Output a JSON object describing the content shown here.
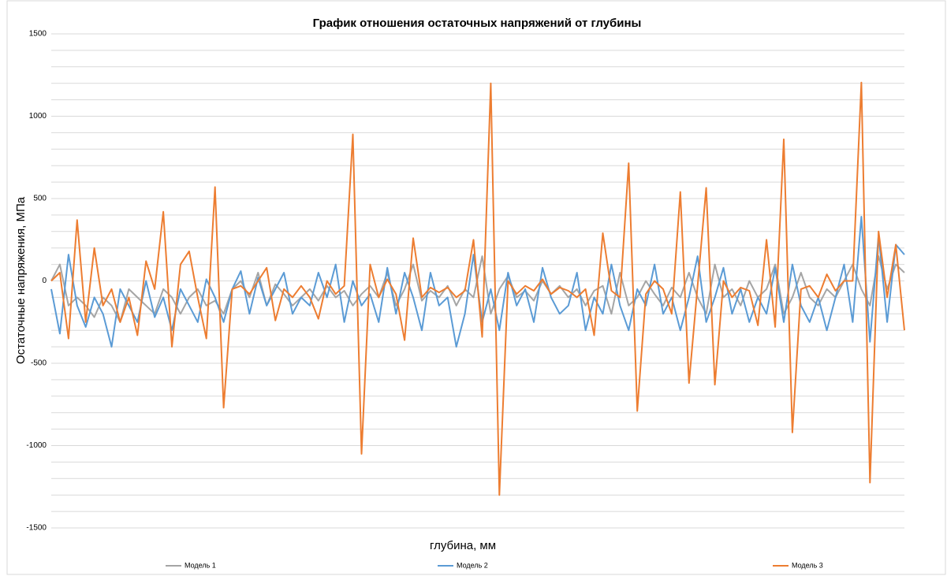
{
  "chart_data": {
    "type": "line",
    "title": "График отношения остаточных напряжений от глубины",
    "xlabel": "глубина, мм",
    "ylabel": "Остаточные напряжения, МПа",
    "legend": "bottom",
    "grid": true,
    "ylim": [
      -1500,
      1500
    ],
    "yticks": [
      -1500,
      -1000,
      -500,
      0,
      500,
      1000,
      1500
    ],
    "ygrid": [
      -1500,
      -1400,
      -1300,
      -1200,
      -1100,
      -1000,
      -900,
      -800,
      -700,
      -600,
      -500,
      -400,
      -300,
      -200,
      -100,
      0,
      100,
      200,
      300,
      400,
      500,
      600,
      700,
      800,
      900,
      1000,
      1100,
      1200,
      1300,
      1400,
      1500
    ],
    "categories": [
      null,
      null,
      null,
      null,
      null,
      null,
      null,
      null,
      null,
      null,
      null,
      null,
      null,
      null,
      null,
      null,
      null,
      null,
      null,
      null,
      null,
      null,
      null,
      null,
      null,
      null,
      null,
      null,
      null,
      null,
      null,
      null,
      null,
      null,
      null,
      null,
      null,
      null,
      null,
      null,
      null,
      null,
      null,
      null,
      null,
      null,
      null,
      null,
      null,
      null,
      null,
      null,
      null,
      null,
      null,
      null,
      null,
      null,
      null,
      null,
      null,
      null,
      null,
      null,
      null,
      null,
      null,
      null,
      null,
      null,
      null,
      null,
      null,
      null,
      null,
      null,
      null,
      null,
      null,
      null,
      null,
      null,
      null,
      null,
      null,
      null,
      null,
      null,
      null,
      null,
      null,
      null,
      null,
      null,
      null,
      null,
      null,
      null,
      null,
      null
    ],
    "series": [
      {
        "name": "Модель 1",
        "color": "#a5a5a5",
        "values": [
          0,
          100,
          -150,
          -100,
          -150,
          -220,
          -100,
          -150,
          -250,
          -50,
          -100,
          -150,
          -200,
          -50,
          -100,
          -200,
          -100,
          -50,
          -150,
          -120,
          -200,
          -50,
          0,
          -100,
          50,
          -150,
          -20,
          -80,
          -150,
          -100,
          -50,
          -120,
          -30,
          -100,
          -60,
          -150,
          -80,
          -30,
          -100,
          50,
          -150,
          -50,
          100,
          -120,
          -60,
          -100,
          -30,
          -150,
          -50,
          -100,
          150,
          -200,
          -50,
          30,
          -100,
          -60,
          -120,
          0,
          -80,
          -30,
          -100,
          -50,
          -150,
          -60,
          -30,
          -200,
          50,
          -150,
          -100,
          0,
          -80,
          -150,
          -40,
          -100,
          50,
          -100,
          -200,
          100,
          -100,
          -50,
          -150,
          0,
          -100,
          -50,
          100,
          -200,
          -100,
          50,
          -100,
          -150,
          -50,
          -100,
          0,
          100,
          -50,
          -150,
          150,
          -50,
          100,
          50
        ]
      },
      {
        "name": "Модель 2",
        "color": "#5b9bd5",
        "values": [
          -50,
          -320,
          160,
          -150,
          -280,
          -100,
          -200,
          -400,
          -50,
          -150,
          -250,
          0,
          -220,
          -100,
          -300,
          -50,
          -150,
          -250,
          10,
          -100,
          -250,
          -50,
          60,
          -200,
          20,
          -150,
          -50,
          50,
          -200,
          -100,
          -150,
          50,
          -100,
          100,
          -250,
          0,
          -150,
          -80,
          -250,
          80,
          -200,
          50,
          -100,
          -300,
          50,
          -150,
          -100,
          -400,
          -200,
          160,
          -250,
          -50,
          -300,
          50,
          -150,
          -50,
          -250,
          80,
          -100,
          -200,
          -150,
          50,
          -300,
          -100,
          -200,
          100,
          -150,
          -300,
          -50,
          -150,
          100,
          -200,
          -100,
          -300,
          -100,
          150,
          -250,
          -100,
          80,
          -200,
          -50,
          -250,
          -100,
          -200,
          80,
          -250,
          100,
          -150,
          -250,
          -100,
          -300,
          -100,
          100,
          -250,
          390,
          -370,
          280,
          -250,
          220,
          160
        ]
      },
      {
        "name": "Модель 3",
        "color": "#ed7d31",
        "values": [
          0,
          50,
          -350,
          370,
          -250,
          200,
          -150,
          -50,
          -250,
          -100,
          -330,
          120,
          -50,
          420,
          -400,
          100,
          180,
          -100,
          -350,
          570,
          -770,
          -50,
          -30,
          -80,
          0,
          80,
          -240,
          -50,
          -100,
          -30,
          -100,
          -230,
          0,
          -80,
          -30,
          890,
          -1050,
          100,
          -100,
          10,
          -80,
          -360,
          260,
          -100,
          -40,
          -70,
          -40,
          -100,
          -60,
          250,
          -340,
          1200,
          -1300,
          0,
          -80,
          -30,
          -60,
          10,
          -80,
          -40,
          -60,
          -100,
          -50,
          -330,
          290,
          -60,
          -100,
          715,
          -790,
          -80,
          0,
          -50,
          -200,
          540,
          -620,
          -30,
          565,
          -630,
          0,
          -100,
          -40,
          -60,
          -270,
          250,
          -280,
          860,
          -920,
          -50,
          -30,
          -100,
          40,
          -60,
          0,
          0,
          1205,
          -1225,
          300,
          -100,
          220,
          -300
        ]
      }
    ]
  }
}
